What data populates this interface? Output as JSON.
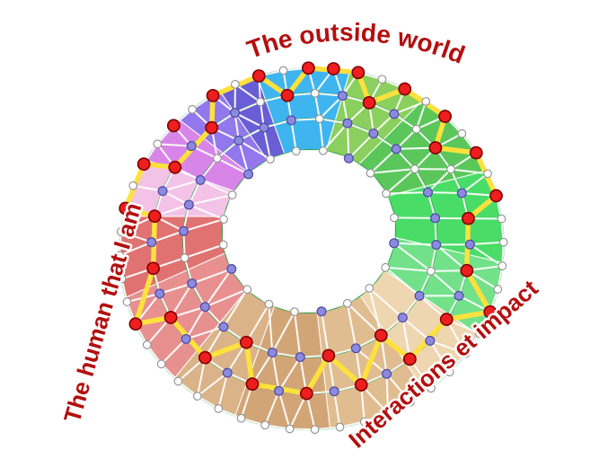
{
  "diagram": {
    "labels": {
      "top": "The outside world",
      "left": "The human that I am",
      "bottom_right": "Interactions et impact"
    },
    "palette": {
      "label_color": "#b30f0f",
      "mesh_line": "#ffffff",
      "ring_outline": "#259b43",
      "yellow_path": "#ffe13c",
      "node_white_fill": "#ffffff",
      "node_white_stroke": "#8f8f8f",
      "node_purple_fill": "#8c8ade",
      "node_purple_stroke": "#4a48a0",
      "node_red_fill": "#ee1e1e",
      "node_red_stroke": "#7e0000"
    },
    "sectors": [
      {
        "name": "sky-blue",
        "from": 352,
        "to": 380,
        "color": "#3fb5f0"
      },
      {
        "name": "lime-green",
        "from": 20,
        "to": 44,
        "color": "#8bcf5e"
      },
      {
        "name": "green",
        "from": 44,
        "to": 74,
        "color": "#5bc75b"
      },
      {
        "name": "bright-green",
        "from": 74,
        "to": 104,
        "color": "#49dd67"
      },
      {
        "name": "light-green",
        "from": 104,
        "to": 128,
        "color": "#72e189"
      },
      {
        "name": "pale-tan",
        "from": 128,
        "to": 152,
        "color": "#eed6b0"
      },
      {
        "name": "tan",
        "from": 152,
        "to": 183,
        "color": "#e0bd90"
      },
      {
        "name": "dark-tan",
        "from": 183,
        "to": 212,
        "color": "#d2a577"
      },
      {
        "name": "warm-tan",
        "from": 212,
        "to": 234,
        "color": "#dbb388"
      },
      {
        "name": "salmon",
        "from": 234,
        "to": 264,
        "color": "#e89090"
      },
      {
        "name": "rose-red",
        "from": 264,
        "to": 290,
        "color": "#e07272"
      },
      {
        "name": "pale-pink",
        "from": 290,
        "to": 309,
        "color": "#f3c3e7"
      },
      {
        "name": "orchid",
        "from": 309,
        "to": 325,
        "color": "#d885e9"
      },
      {
        "name": "purple",
        "from": 325,
        "to": 340,
        "color": "#9377ec"
      },
      {
        "name": "indigo",
        "from": 340,
        "to": 352,
        "color": "#6a5ed6"
      }
    ],
    "rings": [
      {
        "fraction": 1.0,
        "count": 48,
        "default": "white",
        "red": [
          1,
          2,
          3,
          5,
          7,
          9,
          11,
          16,
          34,
          39,
          41,
          43,
          45,
          47
        ]
      },
      {
        "fraction": 0.83,
        "count": 36,
        "default": "white",
        "red": [
          0,
          3,
          6,
          9,
          11,
          13,
          15,
          17,
          19,
          21,
          23,
          25,
          27,
          29,
          31,
          33
        ],
        "purple": [
          2,
          4,
          8,
          10,
          12,
          14,
          16,
          18,
          20,
          22,
          24,
          26,
          28,
          30,
          32,
          34
        ]
      },
      {
        "fraction": 0.66,
        "count": 28,
        "default": "purple",
        "red": [
          12,
          14,
          17
        ],
        "white": [
          1,
          5,
          9,
          21,
          25
        ]
      },
      {
        "fraction": 0.45,
        "count": 20,
        "default": "white",
        "purple": [
          2,
          6,
          10,
          14,
          18
        ]
      }
    ],
    "yellow_path": [
      [
        1,
        0
      ],
      [
        0,
        1
      ],
      [
        0,
        3
      ],
      [
        1,
        3
      ],
      [
        0,
        5
      ],
      [
        0,
        7
      ],
      [
        1,
        6
      ],
      [
        0,
        9
      ],
      [
        0,
        11
      ],
      [
        1,
        9
      ],
      [
        1,
        11
      ],
      [
        0,
        16
      ],
      [
        1,
        13
      ],
      [
        1,
        15
      ],
      [
        2,
        12
      ],
      [
        1,
        17
      ],
      [
        2,
        14
      ],
      [
        1,
        19
      ],
      [
        1,
        21
      ],
      [
        2,
        17
      ],
      [
        1,
        23
      ],
      [
        1,
        25
      ],
      [
        0,
        34
      ],
      [
        1,
        27
      ],
      [
        1,
        29
      ],
      [
        0,
        39
      ],
      [
        0,
        41
      ],
      [
        1,
        31
      ],
      [
        1,
        33
      ],
      [
        0,
        45
      ],
      [
        0,
        47
      ]
    ]
  }
}
